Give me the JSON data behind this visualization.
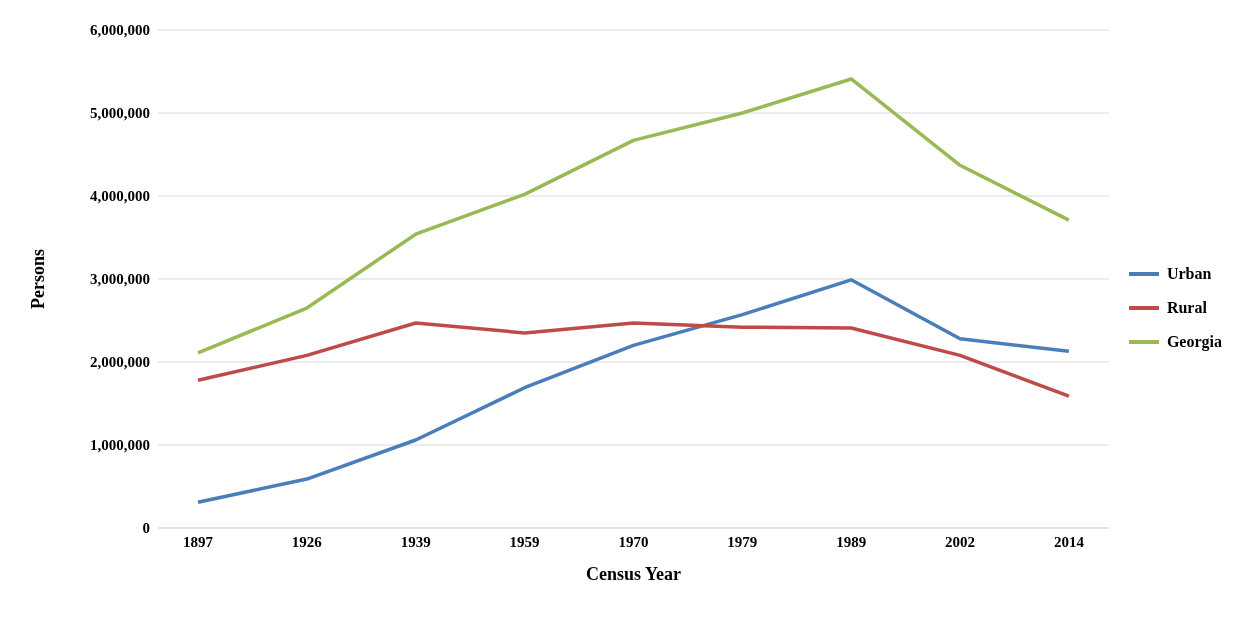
{
  "chart_data": {
    "type": "line",
    "xlabel": "Census Year",
    "ylabel": "Persons",
    "categories": [
      "1897",
      "1926",
      "1939",
      "1959",
      "1970",
      "1979",
      "1989",
      "2002",
      "2014"
    ],
    "series": [
      {
        "name": "Urban",
        "color": "#4a7ebb",
        "values": [
          310000,
          590000,
          1060000,
          1690000,
          2200000,
          2570000,
          2990000,
          2280000,
          2130000
        ]
      },
      {
        "name": "Rural",
        "color": "#be4b48",
        "values": [
          1780000,
          2080000,
          2470000,
          2350000,
          2470000,
          2420000,
          2410000,
          2080000,
          1590000
        ]
      },
      {
        "name": "Georgia",
        "color": "#98b954",
        "values": [
          2110000,
          2650000,
          3540000,
          4020000,
          4670000,
          5000000,
          5410000,
          4370000,
          3710000
        ]
      }
    ],
    "ylim": [
      0,
      6000000
    ],
    "yticks": [
      0,
      {
        "value": 1000000,
        "label": "1,000,000"
      },
      {
        "value": 2000000,
        "label": "2,000,000"
      },
      {
        "value": 3000000,
        "label": "3,000,000"
      },
      {
        "value": 4000000,
        "label": "4,000,000"
      },
      {
        "value": 5000000,
        "label": "5,000,000"
      },
      {
        "value": 6000000,
        "label": "6,000,000"
      }
    ],
    "grid": "y",
    "legend": "right",
    "marker": "none",
    "line_style": "solid"
  }
}
